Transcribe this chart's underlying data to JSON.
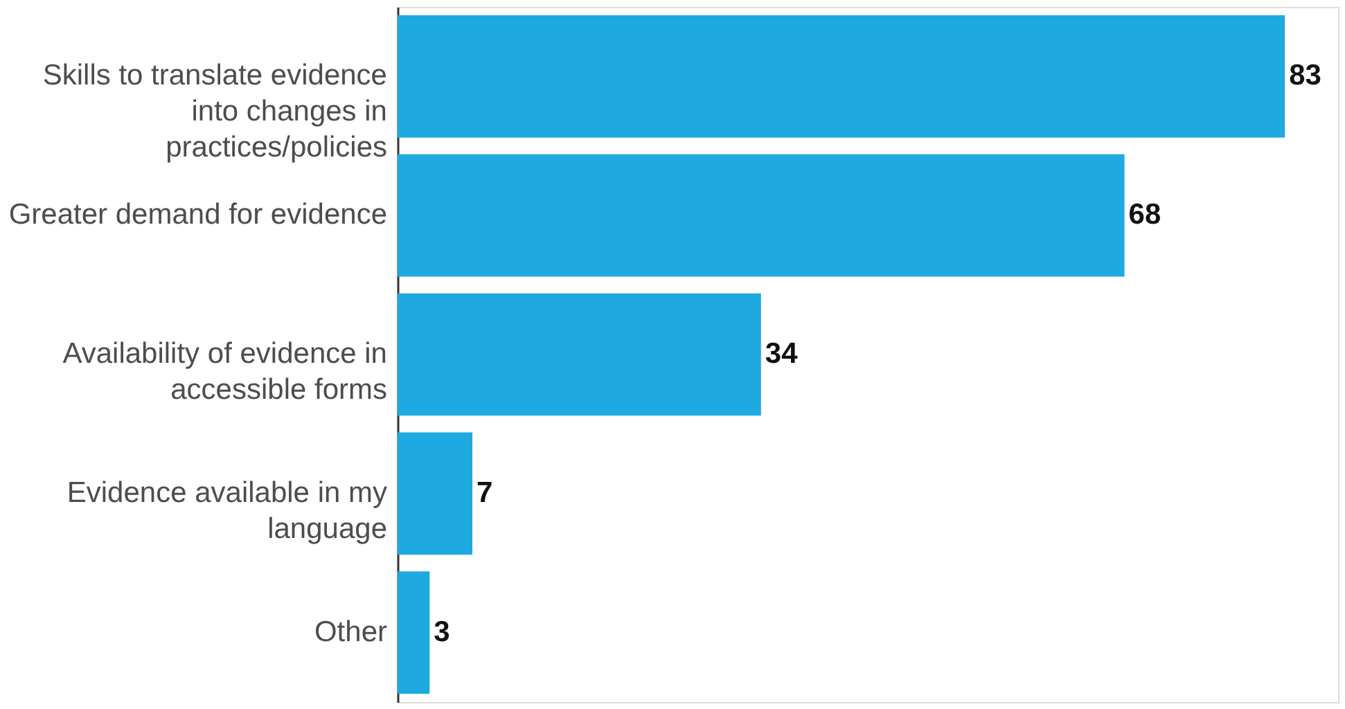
{
  "chart_data": {
    "type": "bar",
    "orientation": "horizontal",
    "categories": [
      "Skills to translate evidence into changes in practices/policies",
      "Greater demand for evidence",
      "Availability of evidence in accessible forms",
      "Evidence available in my language",
      "Other"
    ],
    "values": [
      83,
      68,
      34,
      7,
      3
    ],
    "color": "#1eaae1",
    "data_labels": true
  }
}
